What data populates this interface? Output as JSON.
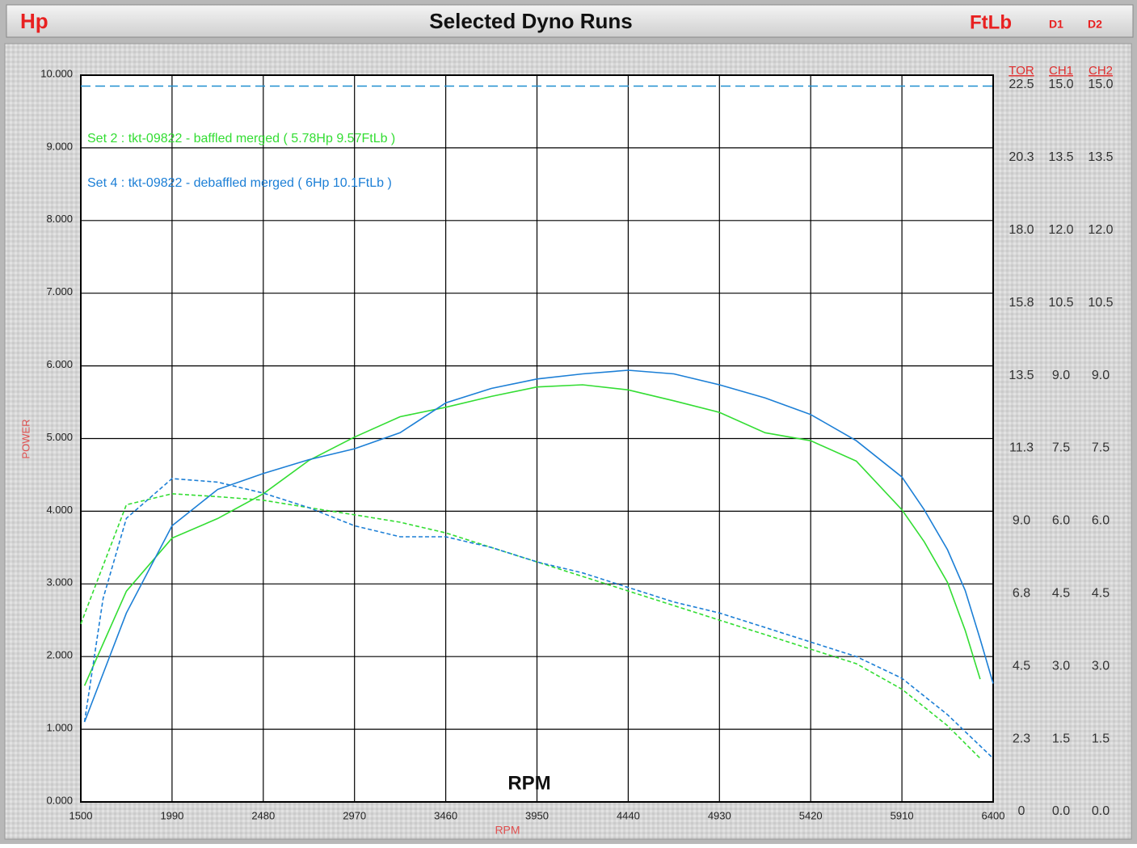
{
  "chart_data": {
    "type": "line",
    "title": "Selected Dyno Runs",
    "left_unit": "Hp",
    "right_unit": "FtLb",
    "right_flags": [
      "D1",
      "D2"
    ],
    "y_label": "POWER",
    "x_label": "RPM",
    "x_annotation": "RPM",
    "xlim": [
      1500,
      6400
    ],
    "xticks": [
      1500,
      1990,
      2480,
      2970,
      3460,
      3950,
      4440,
      4930,
      5420,
      5910,
      6400
    ],
    "ylim": [
      0,
      10
    ],
    "yticks": [
      {
        "value": 0,
        "label": "0.000"
      },
      {
        "value": 1,
        "label": "1.000"
      },
      {
        "value": 2,
        "label": "2.000"
      },
      {
        "value": 3,
        "label": "3.000"
      },
      {
        "value": 4,
        "label": "4.000"
      },
      {
        "value": 5,
        "label": "5.000"
      },
      {
        "value": 6,
        "label": "6.000"
      },
      {
        "value": 7,
        "label": "7.000"
      },
      {
        "value": 8,
        "label": "8.000"
      },
      {
        "value": 9,
        "label": "9.000"
      },
      {
        "value": 10,
        "label": "10.000"
      }
    ],
    "y2_title": "TOR",
    "y2lim": [
      0,
      22.5
    ],
    "y2ticks": [
      0,
      {
        "value": 2.25,
        "label": "2.3"
      },
      4.5,
      {
        "value": 6.75,
        "label": "6.8"
      },
      {
        "value": 9,
        "label": "9.0"
      },
      {
        "value": 11.25,
        "label": "11.3"
      },
      13.5,
      {
        "value": 15.75,
        "label": "15.8"
      },
      {
        "value": 18,
        "label": "18.0"
      },
      {
        "value": 20.25,
        "label": "20.3"
      },
      22.5
    ],
    "ch_axes": [
      {
        "title": "CH1",
        "lim": [
          0,
          15
        ],
        "ticks": [
          {
            "value": 0,
            "label": "0.0"
          },
          1.5,
          {
            "value": 3,
            "label": "3.0"
          },
          4.5,
          {
            "value": 6,
            "label": "6.0"
          },
          7.5,
          {
            "value": 9,
            "label": "9.0"
          },
          10.5,
          {
            "value": 12,
            "label": "12.0"
          },
          13.5,
          {
            "value": 15,
            "label": "15.0"
          }
        ]
      },
      {
        "title": "CH2",
        "lim": [
          0,
          15
        ],
        "ticks": [
          {
            "value": 0,
            "label": "0.0"
          },
          1.5,
          {
            "value": 3,
            "label": "3.0"
          },
          4.5,
          {
            "value": 6,
            "label": "6.0"
          },
          7.5,
          {
            "value": 9,
            "label": "9.0"
          },
          10.5,
          {
            "value": 12,
            "label": "12.0"
          },
          13.5,
          {
            "value": 15,
            "label": "15.0"
          }
        ]
      }
    ],
    "grid": true,
    "reference_line": {
      "value": 9.85,
      "color": "#1f8fd0"
    },
    "series": [
      {
        "name": "Set 2 : tkt-09822 - baffled merged ( 5.78Hp  9.57FtLb )",
        "color": "#33dd33",
        "dashed": false,
        "x": [
          1520,
          1745,
          1990,
          2235,
          2480,
          2725,
          2970,
          3215,
          3460,
          3705,
          3950,
          4195,
          4440,
          4685,
          4930,
          5175,
          5420,
          5665,
          5910,
          6030,
          6155,
          6250,
          6330
        ],
        "values": [
          1.6,
          2.9,
          3.63,
          3.9,
          4.24,
          4.7,
          5.02,
          5.3,
          5.43,
          5.58,
          5.71,
          5.74,
          5.67,
          5.52,
          5.36,
          5.08,
          4.97,
          4.69,
          4.02,
          3.58,
          3.02,
          2.36,
          1.69
        ]
      },
      {
        "name": "Set 4 : tkt-09822 - debaffled merged ( 6Hp  10.1FtLb )",
        "color": "#1c7fd6",
        "dashed": false,
        "x": [
          1520,
          1745,
          1990,
          2235,
          2480,
          2725,
          2970,
          3215,
          3460,
          3705,
          3950,
          4195,
          4440,
          4685,
          4930,
          5175,
          5420,
          5665,
          5910,
          6030,
          6155,
          6250,
          6330,
          6400
        ],
        "values": [
          1.1,
          2.6,
          3.8,
          4.3,
          4.52,
          4.71,
          4.86,
          5.08,
          5.49,
          5.69,
          5.82,
          5.89,
          5.94,
          5.89,
          5.74,
          5.56,
          5.33,
          4.97,
          4.47,
          4.02,
          3.47,
          2.91,
          2.24,
          1.63
        ]
      },
      {
        "color": "#33dd33",
        "dashed": true,
        "axis": "y2",
        "x": [
          1500,
          1745,
          1990,
          2235,
          2480,
          2725,
          2970,
          3215,
          3460,
          3705,
          3950,
          4195,
          4440,
          4685,
          4930,
          5175,
          5420,
          5665,
          5910,
          6155,
          6330
        ],
        "values": [
          5.51,
          9.2,
          9.54,
          9.45,
          9.34,
          9.11,
          8.89,
          8.66,
          8.33,
          7.88,
          7.43,
          6.98,
          6.53,
          6.08,
          5.63,
          5.18,
          4.73,
          4.28,
          3.49,
          2.36,
          1.35
        ]
      },
      {
        "color": "#1c7fd6",
        "dashed": true,
        "axis": "y2",
        "x": [
          1520,
          1620,
          1745,
          1990,
          2235,
          2480,
          2725,
          2970,
          3215,
          3460,
          3705,
          3950,
          4195,
          4440,
          4685,
          4930,
          5175,
          5420,
          5665,
          5910,
          6155,
          6400
        ],
        "values": [
          2.48,
          6.3,
          8.78,
          10.01,
          9.9,
          9.56,
          9.11,
          8.55,
          8.21,
          8.21,
          7.88,
          7.43,
          7.09,
          6.64,
          6.19,
          5.85,
          5.4,
          4.95,
          4.5,
          3.83,
          2.7,
          1.35
        ]
      }
    ]
  }
}
